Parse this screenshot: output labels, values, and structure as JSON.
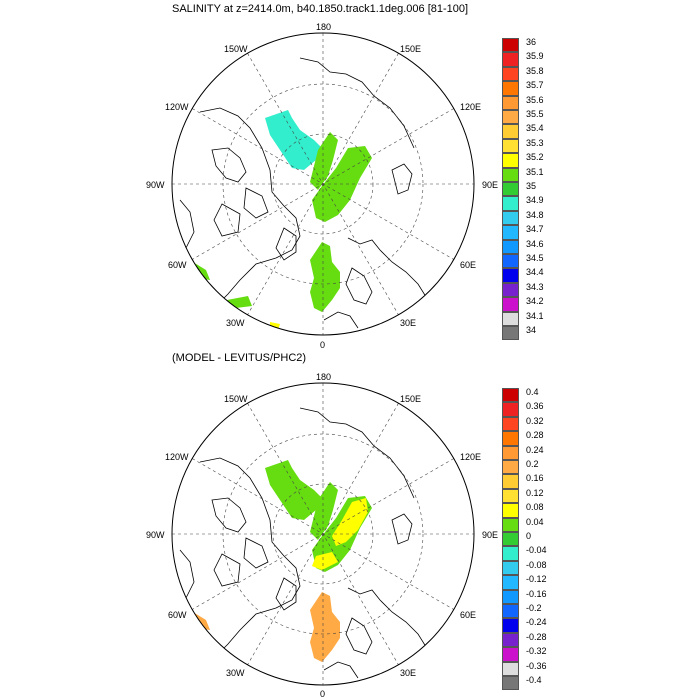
{
  "top_panel": {
    "title": "SALINITY at z=2414.0m, b40.1850.track1.1deg.006 [81-100]",
    "lon_labels": [
      "180",
      "150E",
      "120E",
      "90E",
      "60E",
      "30E",
      "0",
      "30W",
      "60W",
      "90W",
      "120W",
      "150W"
    ],
    "colorbar": {
      "labels": [
        "36",
        "35.9",
        "35.8",
        "35.7",
        "35.6",
        "35.5",
        "35.4",
        "35.3",
        "35.2",
        "35.1",
        "35",
        "34.9",
        "34.8",
        "34.7",
        "34.6",
        "34.5",
        "34.4",
        "34.3",
        "34.2",
        "34.1",
        "34"
      ],
      "colors": [
        "#cc0000",
        "#ee2222",
        "#ff4422",
        "#ff7700",
        "#ff9933",
        "#ffaa44",
        "#ffcc33",
        "#ffe033",
        "#ffff00",
        "#66dd11",
        "#33cc33",
        "#33eecc",
        "#33ccee",
        "#22b8ff",
        "#1199ff",
        "#1166ff",
        "#0000ee",
        "#7722cc",
        "#cc11cc",
        "#dddddd",
        "#777777"
      ]
    }
  },
  "bottom_panel": {
    "title": "(MODEL - LEVITUS/PHC2)",
    "lon_labels": [
      "180",
      "150E",
      "120E",
      "90E",
      "60E",
      "30E",
      "0",
      "30W",
      "60W",
      "90W",
      "120W",
      "150W"
    ],
    "colorbar": {
      "labels": [
        "0.4",
        "0.36",
        "0.32",
        "0.28",
        "0.24",
        "0.2",
        "0.16",
        "0.12",
        "0.08",
        "0.04",
        "0",
        "-0.04",
        "-0.08",
        "-0.12",
        "-0.16",
        "-0.2",
        "-0.24",
        "-0.28",
        "-0.32",
        "-0.36",
        "-0.4"
      ],
      "colors": [
        "#cc0000",
        "#ee2222",
        "#ff4422",
        "#ff7700",
        "#ff9933",
        "#ffaa44",
        "#ffcc33",
        "#ffe033",
        "#ffff00",
        "#66dd11",
        "#33cc33",
        "#33eecc",
        "#33ccee",
        "#22b8ff",
        "#1199ff",
        "#1166ff",
        "#0000ee",
        "#7722cc",
        "#cc11cc",
        "#dddddd",
        "#777777"
      ]
    }
  }
}
